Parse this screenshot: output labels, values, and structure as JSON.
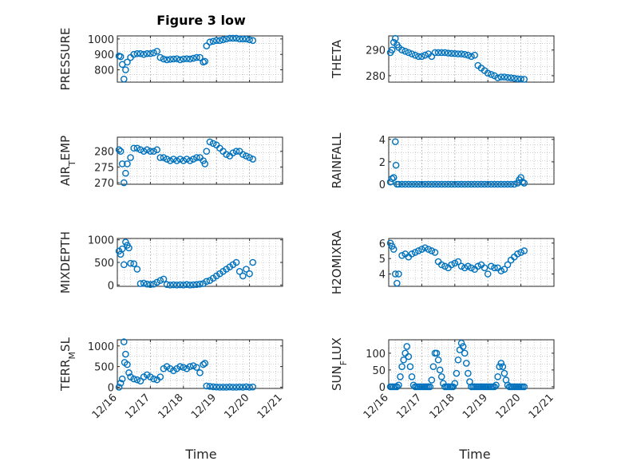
{
  "figure": {
    "title": "Figure 3 low"
  },
  "colors": {
    "marker": "#0072BD",
    "axis": "#262626",
    "grid": "#b0b0b0"
  },
  "chart_data": [
    {
      "type": "scatter",
      "ylabel": "PRESSURE",
      "yticks": [
        "800",
        "900",
        "1000"
      ],
      "ylim": [
        720,
        1020
      ],
      "xlim": [
        0,
        5
      ],
      "grid": true,
      "x": [
        0.05,
        0.1,
        0.15,
        0.2,
        0.25,
        0.3,
        0.4,
        0.5,
        0.6,
        0.7,
        0.8,
        0.9,
        1.0,
        1.1,
        1.2,
        1.3,
        1.4,
        1.5,
        1.6,
        1.7,
        1.8,
        1.9,
        2.0,
        2.1,
        2.2,
        2.3,
        2.4,
        2.5,
        2.6,
        2.65,
        2.7,
        2.8,
        2.9,
        3.0,
        3.1,
        3.2,
        3.3,
        3.4,
        3.5,
        3.6,
        3.7,
        3.8,
        3.9,
        4.0,
        4.1
      ],
      "y": [
        890,
        885,
        835,
        740,
        800,
        850,
        880,
        900,
        905,
        905,
        900,
        905,
        905,
        910,
        920,
        880,
        870,
        865,
        868,
        870,
        872,
        865,
        870,
        872,
        870,
        875,
        880,
        880,
        850,
        855,
        955,
        980,
        985,
        990,
        990,
        995,
        1000,
        1005,
        1005,
        1005,
        1000,
        1000,
        1000,
        995,
        990
      ]
    },
    {
      "type": "scatter",
      "ylabel": "THETA",
      "yticks": [
        "280",
        "290"
      ],
      "ylim": [
        277.5,
        295.5
      ],
      "xlim": [
        0,
        5
      ],
      "grid": true,
      "x": [
        0.05,
        0.1,
        0.15,
        0.2,
        0.25,
        0.3,
        0.4,
        0.5,
        0.6,
        0.7,
        0.8,
        0.9,
        1.0,
        1.1,
        1.2,
        1.3,
        1.4,
        1.5,
        1.6,
        1.7,
        1.8,
        1.9,
        2.0,
        2.1,
        2.2,
        2.3,
        2.4,
        2.5,
        2.6,
        2.7,
        2.8,
        2.9,
        3.0,
        3.1,
        3.2,
        3.3,
        3.4,
        3.5,
        3.6,
        3.7,
        3.8,
        3.9,
        4.0,
        4.1
      ],
      "y": [
        289,
        290,
        293,
        294.5,
        292,
        291,
        290,
        289.5,
        289,
        288.5,
        288,
        287.5,
        287.5,
        288,
        288.5,
        287.5,
        289,
        289,
        289,
        289,
        288.8,
        288.7,
        288.6,
        288.5,
        288.5,
        288.3,
        288,
        287.5,
        288,
        284,
        283,
        282,
        281,
        280.5,
        280,
        279.2,
        279.5,
        279.5,
        279.3,
        279.2,
        279,
        278.8,
        278.7,
        278.6
      ]
    },
    {
      "type": "scatter",
      "ylabel": "AIR_TEMP",
      "yticks": [
        "270",
        "275",
        "280"
      ],
      "ylim": [
        269.5,
        284.5
      ],
      "xlim": [
        0,
        5
      ],
      "grid": true,
      "x": [
        0.05,
        0.1,
        0.15,
        0.2,
        0.25,
        0.3,
        0.4,
        0.5,
        0.6,
        0.7,
        0.8,
        0.9,
        1.0,
        1.1,
        1.2,
        1.3,
        1.4,
        1.5,
        1.6,
        1.7,
        1.8,
        1.9,
        2.0,
        2.1,
        2.2,
        2.3,
        2.4,
        2.5,
        2.6,
        2.65,
        2.7,
        2.8,
        2.9,
        3.0,
        3.1,
        3.2,
        3.3,
        3.4,
        3.5,
        3.6,
        3.7,
        3.8,
        3.9,
        4.0,
        4.1
      ],
      "y": [
        280.5,
        280,
        276,
        270,
        273,
        276,
        278,
        281,
        281,
        280.5,
        280,
        280.5,
        280,
        280,
        280.5,
        278,
        278,
        277.5,
        277,
        277.5,
        277,
        277.5,
        277,
        277.5,
        277,
        277.5,
        278,
        278,
        277,
        276,
        280,
        283,
        282.5,
        282,
        281,
        280,
        279,
        278.5,
        279.5,
        280,
        280,
        279,
        278.5,
        278,
        277.5
      ]
    },
    {
      "type": "scatter",
      "ylabel": "RAINFALL",
      "yticks": [
        "0",
        "2",
        "4"
      ],
      "ylim": [
        0,
        4.2
      ],
      "xlim": [
        0,
        5
      ],
      "grid": true,
      "x": [
        0.05,
        0.1,
        0.15,
        0.2,
        0.22,
        0.25,
        0.3,
        0.4,
        0.5,
        0.6,
        0.7,
        0.8,
        0.9,
        1.0,
        1.1,
        1.2,
        1.3,
        1.4,
        1.5,
        1.6,
        1.7,
        1.8,
        1.9,
        2.0,
        2.1,
        2.2,
        2.3,
        2.4,
        2.5,
        2.6,
        2.7,
        2.8,
        2.9,
        3.0,
        3.1,
        3.2,
        3.3,
        3.4,
        3.5,
        3.6,
        3.7,
        3.8,
        3.9,
        3.95,
        4.0,
        4.05,
        4.1
      ],
      "y": [
        0.2,
        0.5,
        0.6,
        3.8,
        1.7,
        0,
        0,
        0,
        0,
        0,
        0,
        0,
        0,
        0,
        0,
        0,
        0,
        0,
        0,
        0,
        0,
        0,
        0,
        0,
        0,
        0,
        0,
        0,
        0,
        0,
        0,
        0,
        0,
        0,
        0,
        0,
        0,
        0,
        0,
        0,
        0,
        0,
        0.1,
        0.4,
        0.6,
        0.2,
        0.1
      ]
    },
    {
      "type": "scatter",
      "ylabel": "MIXDEPTH",
      "yticks": [
        "0",
        "500",
        "1000"
      ],
      "ylim": [
        -30,
        1030
      ],
      "xlim": [
        0,
        5
      ],
      "grid": true,
      "x": [
        0.05,
        0.1,
        0.15,
        0.2,
        0.25,
        0.3,
        0.35,
        0.4,
        0.5,
        0.6,
        0.7,
        0.8,
        0.9,
        1.0,
        1.1,
        1.2,
        1.3,
        1.4,
        1.5,
        1.6,
        1.7,
        1.8,
        1.9,
        2.0,
        2.1,
        2.2,
        2.3,
        2.4,
        2.5,
        2.6,
        2.7,
        2.8,
        2.9,
        3.0,
        3.1,
        3.2,
        3.3,
        3.4,
        3.5,
        3.6,
        3.7,
        3.8,
        3.9,
        4.0,
        4.1
      ],
      "y": [
        750,
        680,
        800,
        450,
        950,
        880,
        820,
        480,
        470,
        350,
        30,
        40,
        20,
        10,
        20,
        60,
        100,
        130,
        10,
        0,
        5,
        0,
        5,
        0,
        10,
        0,
        5,
        10,
        20,
        30,
        80,
        100,
        150,
        200,
        250,
        300,
        350,
        400,
        450,
        500,
        300,
        200,
        350,
        250,
        500
      ]
    },
    {
      "type": "scatter",
      "ylabel": "H2OMIXRA",
      "yticks": [
        "4",
        "5",
        "6"
      ],
      "ylim": [
        3.2,
        6.3
      ],
      "xlim": [
        0,
        5
      ],
      "grid": true,
      "x": [
        0.05,
        0.1,
        0.15,
        0.2,
        0.25,
        0.3,
        0.4,
        0.5,
        0.6,
        0.7,
        0.8,
        0.9,
        1.0,
        1.1,
        1.2,
        1.3,
        1.4,
        1.5,
        1.6,
        1.7,
        1.8,
        1.9,
        2.0,
        2.1,
        2.2,
        2.3,
        2.4,
        2.5,
        2.6,
        2.7,
        2.8,
        2.9,
        3.0,
        3.1,
        3.2,
        3.3,
        3.4,
        3.5,
        3.6,
        3.7,
        3.8,
        3.9,
        4.0,
        4.1
      ],
      "y": [
        6,
        5.8,
        5.6,
        4,
        3.4,
        4,
        5.2,
        5.3,
        5.1,
        5.3,
        5.4,
        5.5,
        5.6,
        5.7,
        5.6,
        5.5,
        5.4,
        4.8,
        4.6,
        4.5,
        4.4,
        4.6,
        4.7,
        4.8,
        4.5,
        4.4,
        4.5,
        4.4,
        4.3,
        4.5,
        4.6,
        4.4,
        4.0,
        4.5,
        4.4,
        4.4,
        4.2,
        4.3,
        4.6,
        4.9,
        5.1,
        5.3,
        5.4,
        5.5
      ]
    },
    {
      "type": "scatter",
      "ylabel": "TERR_MSL",
      "yticks": [
        "0",
        "500",
        "1000"
      ],
      "ylim": [
        -30,
        1150
      ],
      "xlim": [
        0,
        5
      ],
      "grid": true,
      "x": [
        0.05,
        0.1,
        0.15,
        0.2,
        0.22,
        0.25,
        0.3,
        0.35,
        0.4,
        0.5,
        0.6,
        0.7,
        0.8,
        0.9,
        1.0,
        1.1,
        1.2,
        1.3,
        1.4,
        1.5,
        1.6,
        1.7,
        1.8,
        1.9,
        2.0,
        2.1,
        2.2,
        2.3,
        2.4,
        2.5,
        2.6,
        2.65,
        2.7,
        2.8,
        2.9,
        3.0,
        3.1,
        3.2,
        3.3,
        3.4,
        3.5,
        3.6,
        3.7,
        3.8,
        3.9,
        4.0,
        4.1
      ],
      "y": [
        0,
        100,
        200,
        1100,
        600,
        800,
        550,
        350,
        250,
        200,
        180,
        150,
        250,
        300,
        250,
        200,
        180,
        250,
        450,
        500,
        450,
        400,
        450,
        500,
        480,
        450,
        500,
        520,
        480,
        350,
        550,
        580,
        30,
        20,
        10,
        5,
        0,
        0,
        0,
        5,
        0,
        0,
        5,
        0,
        10,
        0,
        5
      ]
    },
    {
      "type": "scatter",
      "ylabel": "SUN_FLUX",
      "yticks": [
        "0",
        "50",
        "100"
      ],
      "ylim": [
        -5,
        140
      ],
      "xlim": [
        0,
        5
      ],
      "grid": true,
      "x": [
        0.05,
        0.1,
        0.15,
        0.2,
        0.25,
        0.3,
        0.35,
        0.4,
        0.45,
        0.5,
        0.55,
        0.6,
        0.65,
        0.7,
        0.75,
        0.8,
        0.85,
        0.9,
        0.95,
        1.0,
        1.05,
        1.1,
        1.15,
        1.2,
        1.25,
        1.3,
        1.35,
        1.4,
        1.45,
        1.5,
        1.55,
        1.6,
        1.65,
        1.7,
        1.75,
        1.8,
        1.85,
        1.9,
        1.95,
        2.0,
        2.05,
        2.1,
        2.15,
        2.2,
        2.25,
        2.3,
        2.35,
        2.4,
        2.45,
        2.5,
        2.55,
        2.6,
        2.65,
        2.7,
        2.75,
        2.8,
        2.85,
        2.9,
        2.95,
        3.0,
        3.05,
        3.1,
        3.15,
        3.2,
        3.25,
        3.3,
        3.35,
        3.4,
        3.45,
        3.5,
        3.55,
        3.6,
        3.65,
        3.7,
        3.75,
        3.8,
        3.85,
        3.9,
        3.95,
        4.0,
        4.05,
        4.1
      ],
      "y": [
        0,
        0,
        0,
        0,
        0,
        5,
        30,
        60,
        80,
        100,
        120,
        90,
        60,
        30,
        5,
        0,
        0,
        0,
        0,
        0,
        0,
        0,
        0,
        0,
        0,
        20,
        60,
        100,
        100,
        80,
        50,
        30,
        10,
        0,
        0,
        0,
        0,
        0,
        0,
        10,
        40,
        80,
        110,
        130,
        120,
        100,
        70,
        40,
        15,
        0,
        0,
        0,
        0,
        0,
        0,
        0,
        0,
        0,
        0,
        0,
        0,
        0,
        0,
        0,
        5,
        30,
        60,
        70,
        60,
        40,
        20,
        5,
        0,
        0,
        0,
        0,
        0,
        0,
        0,
        0,
        0,
        0
      ]
    }
  ],
  "layout_meta": {
    "xticklabels": [
      "12/16",
      "12/17",
      "12/18",
      "12/19",
      "12/20",
      "12/21"
    ],
    "xlabel": "Time"
  }
}
